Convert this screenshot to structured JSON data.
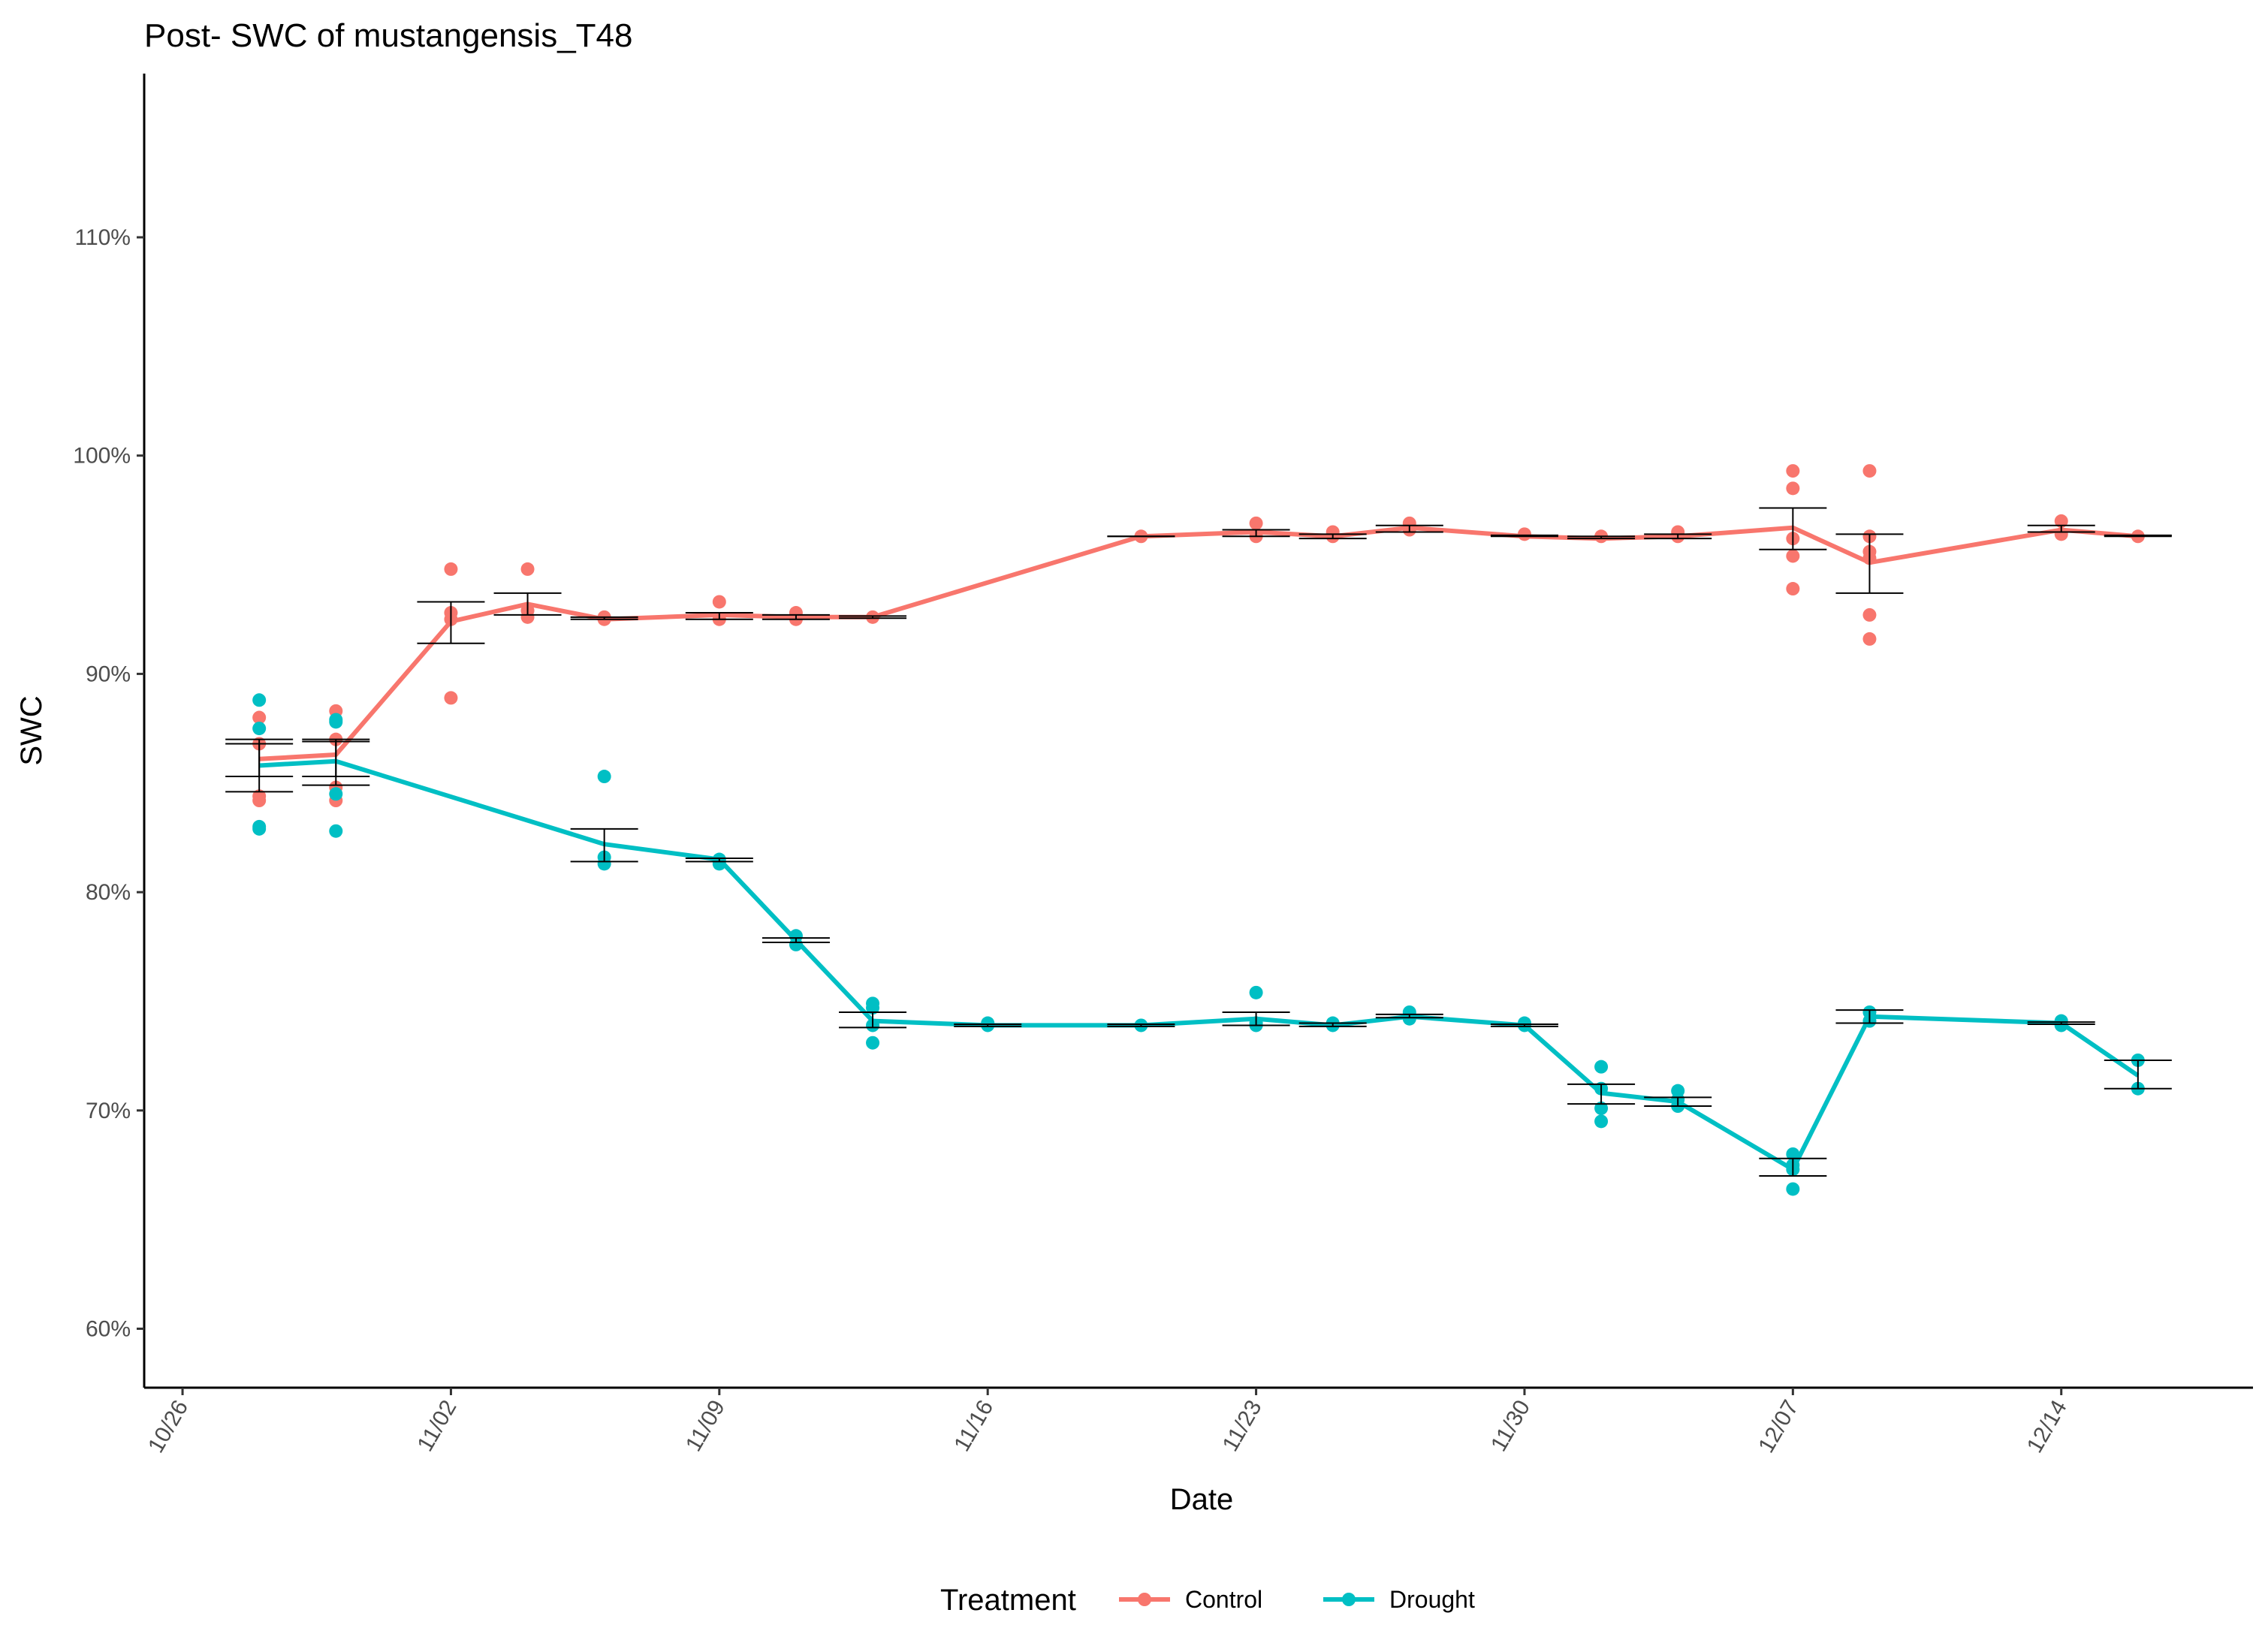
{
  "chart_data": {
    "type": "line",
    "title": "Post- SWC of mustangensis_T48",
    "xlabel": "Date",
    "ylabel": "SWC",
    "x_ticks": [
      "10/26",
      "11/02",
      "11/09",
      "11/16",
      "11/23",
      "11/30",
      "12/07",
      "12/14"
    ],
    "y_ticks": [
      "60%",
      "70%",
      "80%",
      "90%",
      "100%",
      "110%"
    ],
    "xlim": [
      "2023-10-25",
      "2023-12-19"
    ],
    "ylim": [
      57.3,
      117.5
    ],
    "grid": false,
    "legend": {
      "title": "Treatment",
      "position": "bottom"
    },
    "series": [
      {
        "name": "Control",
        "color": "#F8766D",
        "points": [
          {
            "date": "2023-10-28",
            "mean": 86.1,
            "lo": 84.6,
            "hi": 87.0,
            "obs": [
              88.0,
              86.8,
              84.4,
              84.2
            ]
          },
          {
            "date": "2023-10-30",
            "mean": 86.3,
            "lo": 85.3,
            "hi": 87.0,
            "obs": [
              88.3,
              87.0,
              84.8,
              84.2
            ]
          },
          {
            "date": "2023-11-02",
            "mean": 92.4,
            "lo": 91.4,
            "hi": 93.3,
            "obs": [
              94.8,
              92.8,
              92.5,
              88.9
            ]
          },
          {
            "date": "2023-11-04",
            "mean": 93.2,
            "lo": 92.7,
            "hi": 93.7,
            "obs": [
              94.8,
              92.9,
              92.6
            ]
          },
          {
            "date": "2023-11-06",
            "mean": 92.5,
            "lo": 92.5,
            "hi": 92.6,
            "obs": [
              92.6,
              92.5
            ]
          },
          {
            "date": "2023-11-09",
            "mean": 92.7,
            "lo": 92.5,
            "hi": 92.8,
            "obs": [
              93.3,
              92.5
            ]
          },
          {
            "date": "2023-11-11",
            "mean": 92.6,
            "lo": 92.5,
            "hi": 92.7,
            "obs": [
              92.8,
              92.5
            ]
          },
          {
            "date": "2023-11-13",
            "mean": 92.6,
            "lo": 92.55,
            "hi": 92.65,
            "obs": [
              92.6
            ]
          },
          {
            "date": "2023-11-20",
            "mean": 96.3,
            "lo": 96.3,
            "hi": 96.3,
            "obs": [
              96.3
            ]
          },
          {
            "date": "2023-11-23",
            "mean": 96.5,
            "lo": 96.3,
            "hi": 96.6,
            "obs": [
              96.9,
              96.3
            ]
          },
          {
            "date": "2023-11-25",
            "mean": 96.3,
            "lo": 96.2,
            "hi": 96.4,
            "obs": [
              96.5,
              96.3
            ]
          },
          {
            "date": "2023-11-27",
            "mean": 96.7,
            "lo": 96.5,
            "hi": 96.8,
            "obs": [
              96.9,
              96.6
            ]
          },
          {
            "date": "2023-11-30",
            "mean": 96.3,
            "lo": 96.3,
            "hi": 96.35,
            "obs": [
              96.4
            ]
          },
          {
            "date": "2023-12-02",
            "mean": 96.2,
            "lo": 96.2,
            "hi": 96.3,
            "obs": [
              96.3
            ]
          },
          {
            "date": "2023-12-04",
            "mean": 96.3,
            "lo": 96.2,
            "hi": 96.4,
            "obs": [
              96.5,
              96.3
            ]
          },
          {
            "date": "2023-12-07",
            "mean": 96.7,
            "lo": 95.7,
            "hi": 97.6,
            "obs": [
              99.3,
              98.5,
              96.2,
              95.4,
              93.9
            ]
          },
          {
            "date": "2023-12-09",
            "mean": 95.1,
            "lo": 93.7,
            "hi": 96.4,
            "obs": [
              99.3,
              96.3,
              95.6,
              95.3,
              92.7,
              91.6
            ]
          },
          {
            "date": "2023-12-14",
            "mean": 96.6,
            "lo": 96.5,
            "hi": 96.8,
            "obs": [
              97.0,
              96.4
            ]
          },
          {
            "date": "2023-12-16",
            "mean": 96.3,
            "lo": 96.3,
            "hi": 96.35,
            "obs": [
              96.3
            ]
          }
        ]
      },
      {
        "name": "Drought",
        "color": "#00BFC4",
        "points": [
          {
            "date": "2023-10-28",
            "mean": 85.8,
            "lo": 85.3,
            "hi": 86.8,
            "obs": [
              88.8,
              87.5,
              83.0,
              82.9
            ]
          },
          {
            "date": "2023-10-30",
            "mean": 86.0,
            "lo": 84.9,
            "hi": 86.9,
            "obs": [
              87.9,
              87.8,
              84.5,
              82.8
            ]
          },
          {
            "date": "2023-11-06",
            "mean": 82.2,
            "lo": 81.4,
            "hi": 82.9,
            "obs": [
              85.3,
              81.6,
              81.3
            ]
          },
          {
            "date": "2023-11-09",
            "mean": 81.5,
            "lo": 81.4,
            "hi": 81.55,
            "obs": [
              81.5,
              81.3
            ]
          },
          {
            "date": "2023-11-11",
            "mean": 77.8,
            "lo": 77.7,
            "hi": 77.9,
            "obs": [
              78.0,
              77.6
            ]
          },
          {
            "date": "2023-11-13",
            "mean": 74.1,
            "lo": 73.8,
            "hi": 74.5,
            "obs": [
              74.9,
              74.7,
              73.9,
              73.1
            ]
          },
          {
            "date": "2023-11-16",
            "mean": 73.9,
            "lo": 73.85,
            "hi": 73.95,
            "obs": [
              74.0,
              73.9
            ]
          },
          {
            "date": "2023-11-20",
            "mean": 73.9,
            "lo": 73.85,
            "hi": 73.95,
            "obs": [
              73.9
            ]
          },
          {
            "date": "2023-11-23",
            "mean": 74.2,
            "lo": 73.9,
            "hi": 74.5,
            "obs": [
              75.4,
              74.0,
              73.9
            ]
          },
          {
            "date": "2023-11-25",
            "mean": 73.9,
            "lo": 73.85,
            "hi": 74.0,
            "obs": [
              74.0,
              73.9
            ]
          },
          {
            "date": "2023-11-27",
            "mean": 74.3,
            "lo": 74.25,
            "hi": 74.4,
            "obs": [
              74.5,
              74.2
            ]
          },
          {
            "date": "2023-11-30",
            "mean": 73.9,
            "lo": 73.85,
            "hi": 73.95,
            "obs": [
              74.0,
              73.9
            ]
          },
          {
            "date": "2023-12-02",
            "mean": 70.8,
            "lo": 70.3,
            "hi": 71.2,
            "obs": [
              72.0,
              71.0,
              70.1,
              69.5
            ]
          },
          {
            "date": "2023-12-04",
            "mean": 70.4,
            "lo": 70.2,
            "hi": 70.6,
            "obs": [
              70.9,
              70.5,
              70.2
            ]
          },
          {
            "date": "2023-12-07",
            "mean": 67.3,
            "lo": 67.0,
            "hi": 67.8,
            "obs": [
              68.0,
              67.5,
              67.3,
              66.4
            ]
          },
          {
            "date": "2023-12-09",
            "mean": 74.3,
            "lo": 74.0,
            "hi": 74.6,
            "obs": [
              74.5,
              74.1
            ]
          },
          {
            "date": "2023-12-14",
            "mean": 74.0,
            "lo": 73.95,
            "hi": 74.05,
            "obs": [
              74.1,
              73.9
            ]
          },
          {
            "date": "2023-12-16",
            "mean": 71.6,
            "lo": 71.0,
            "hi": 72.3,
            "obs": [
              72.3,
              71.0
            ]
          }
        ]
      }
    ]
  }
}
